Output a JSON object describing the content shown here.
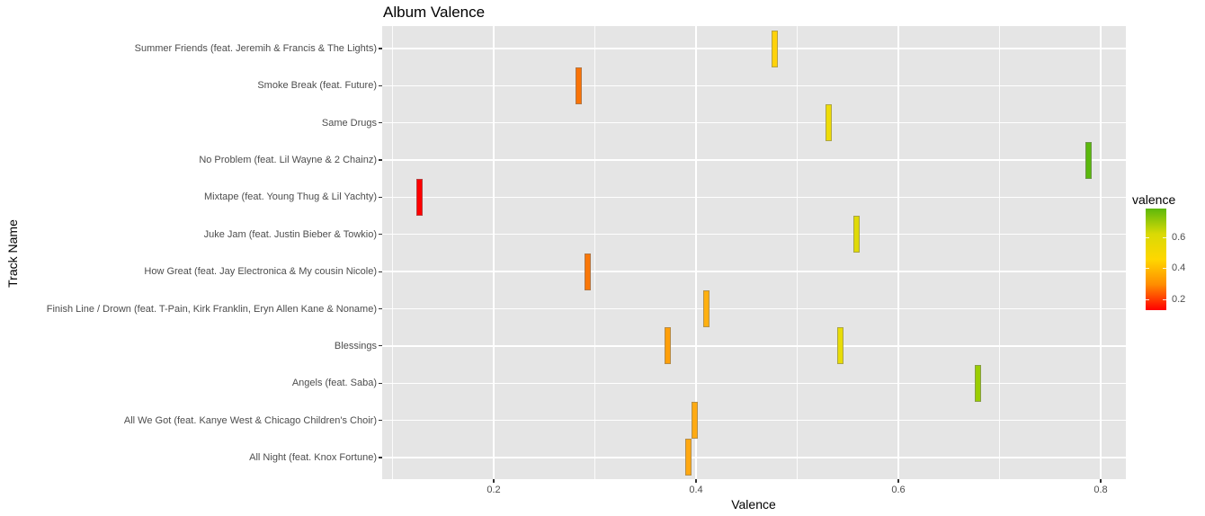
{
  "chart_data": {
    "type": "tile",
    "title": "Album Valence",
    "xlabel": "Valence",
    "ylabel": "Track Name",
    "xlim": [
      0.09,
      0.825
    ],
    "x_ticks": [
      0.2,
      0.4,
      0.6,
      0.8
    ],
    "x_tick_labels": [
      "0.2",
      "0.4",
      "0.6",
      "0.8"
    ],
    "grid": true,
    "legend": {
      "title": "valence",
      "position": "right",
      "type": "colorbar",
      "ticks": [
        "0.2",
        "0.4",
        "0.6"
      ],
      "range": [
        0.127,
        0.788
      ],
      "colors": [
        "#FF0000",
        "#FF8C00",
        "#FFD700",
        "#D9DA05",
        "#5CB80B"
      ]
    },
    "categories": [
      "Summer Friends (feat. Jeremih & Francis & The Lights)",
      "Smoke Break (feat. Future)",
      "Same Drugs",
      "No Problem (feat. Lil Wayne & 2 Chainz)",
      "Mixtape (feat. Young Thug & Lil Yachty)",
      "Juke Jam (feat. Justin Bieber & Towkio)",
      "How Great (feat. Jay Electronica & My cousin Nicole)",
      "Finish Line / Drown (feat. T-Pain, Kirk Franklin, Eryn Allen Kane & Noname)",
      "Blessings",
      "Angels (feat. Saba)",
      "All We Got (feat. Kanye West & Chicago Children's Choir)",
      "All Night (feat. Knox Fortune)"
    ],
    "points": [
      {
        "track": "Summer Friends (feat. Jeremih & Francis & The Lights)",
        "valence": 0.478,
        "color": "#FFD20A"
      },
      {
        "track": "Smoke Break (feat. Future)",
        "valence": 0.284,
        "color": "#F97307"
      },
      {
        "track": "Same Drugs",
        "valence": 0.531,
        "color": "#EEDC08"
      },
      {
        "track": "No Problem (feat. Lil Wayne & 2 Chainz)",
        "valence": 0.788,
        "color": "#5BB80D"
      },
      {
        "track": "Mixtape (feat. Young Thug & Lil Yachty)",
        "valence": 0.127,
        "color": "#FF0000"
      },
      {
        "track": "Juke Jam (feat. Justin Bieber & Towkio)",
        "valence": 0.559,
        "color": "#E0DA07"
      },
      {
        "track": "How Great (feat. Jay Electronica & My cousin Nicole)",
        "valence": 0.293,
        "color": "#F97708"
      },
      {
        "track": "Finish Line / Drown (feat. T-Pain, Kirk Franklin, Eryn Allen Kane & Noname)",
        "valence": 0.41,
        "color": "#FFB010"
      },
      {
        "track": "Blessings",
        "valence": 0.372,
        "color": "#FF9F0A"
      },
      {
        "track": "Blessings",
        "valence": 0.543,
        "color": "#E8DC08"
      },
      {
        "track": "Angels (feat. Saba)",
        "valence": 0.679,
        "color": "#9ACD02"
      },
      {
        "track": "All We Got (feat. Kanye West & Chicago Children's Choir)",
        "valence": 0.399,
        "color": "#FFAA12"
      },
      {
        "track": "All Night (feat. Knox Fortune)",
        "valence": 0.392,
        "color": "#FFA812"
      }
    ]
  }
}
